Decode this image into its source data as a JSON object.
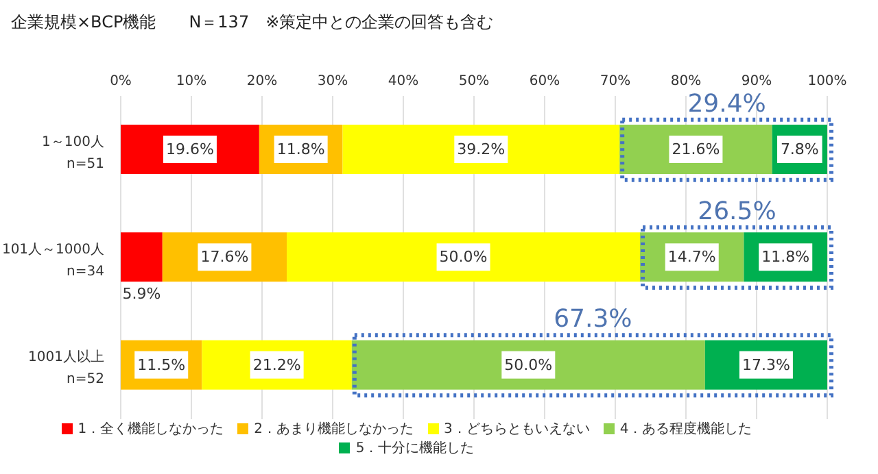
{
  "chart_data": {
    "type": "bar",
    "orientation": "horizontal",
    "stacked": true,
    "title": "企業規模×BCP機能　　N＝137　※策定中との企業の回答も含む",
    "categories": [
      "1～100人 n=51",
      "101人～1000人 n=34",
      "1001人以上 n=52"
    ],
    "series": [
      {
        "name": "1．全く機能しなかった",
        "color": "#ff0000",
        "values": [
          19.6,
          5.9,
          null
        ],
        "value_labels": [
          "19.6%",
          "5.9%",
          null
        ]
      },
      {
        "name": "2．あまり機能しなかった",
        "color": "#ffc000",
        "values": [
          11.8,
          17.6,
          11.5
        ],
        "value_labels": [
          "11.8%",
          "17.6%",
          "11.5%"
        ]
      },
      {
        "name": "3．どちらともいえない",
        "color": "#ffff00",
        "values": [
          39.2,
          50.0,
          21.2
        ],
        "value_labels": [
          "39.2%",
          "50.0%",
          "21.2%"
        ]
      },
      {
        "name": "4．ある程度機能した",
        "color": "#92d050",
        "values": [
          21.6,
          14.7,
          50.0
        ],
        "value_labels": [
          "21.6%",
          "14.7%",
          "50.0%"
        ]
      },
      {
        "name": "5．十分に機能した",
        "color": "#00b050",
        "values": [
          7.8,
          11.8,
          17.3
        ],
        "value_labels": [
          "7.8%",
          "11.8%",
          "17.3%"
        ]
      }
    ],
    "xlim": [
      0,
      100
    ],
    "xticks": [
      {
        "value": 0,
        "label": "0%"
      },
      {
        "value": 10,
        "label": "10%"
      },
      {
        "value": 20,
        "label": "20%"
      },
      {
        "value": 30,
        "label": "30%"
      },
      {
        "value": 40,
        "label": "40%"
      },
      {
        "value": 50,
        "label": "50%"
      },
      {
        "value": 60,
        "label": "60%"
      },
      {
        "value": 70,
        "label": "70%"
      },
      {
        "value": 80,
        "label": "80%"
      },
      {
        "value": 90,
        "label": "90%"
      },
      {
        "value": 100,
        "label": "100%"
      }
    ],
    "annotations": [
      "29.4%",
      "26.5%",
      "67.3%"
    ],
    "grid": "x",
    "legend": "bottom"
  }
}
